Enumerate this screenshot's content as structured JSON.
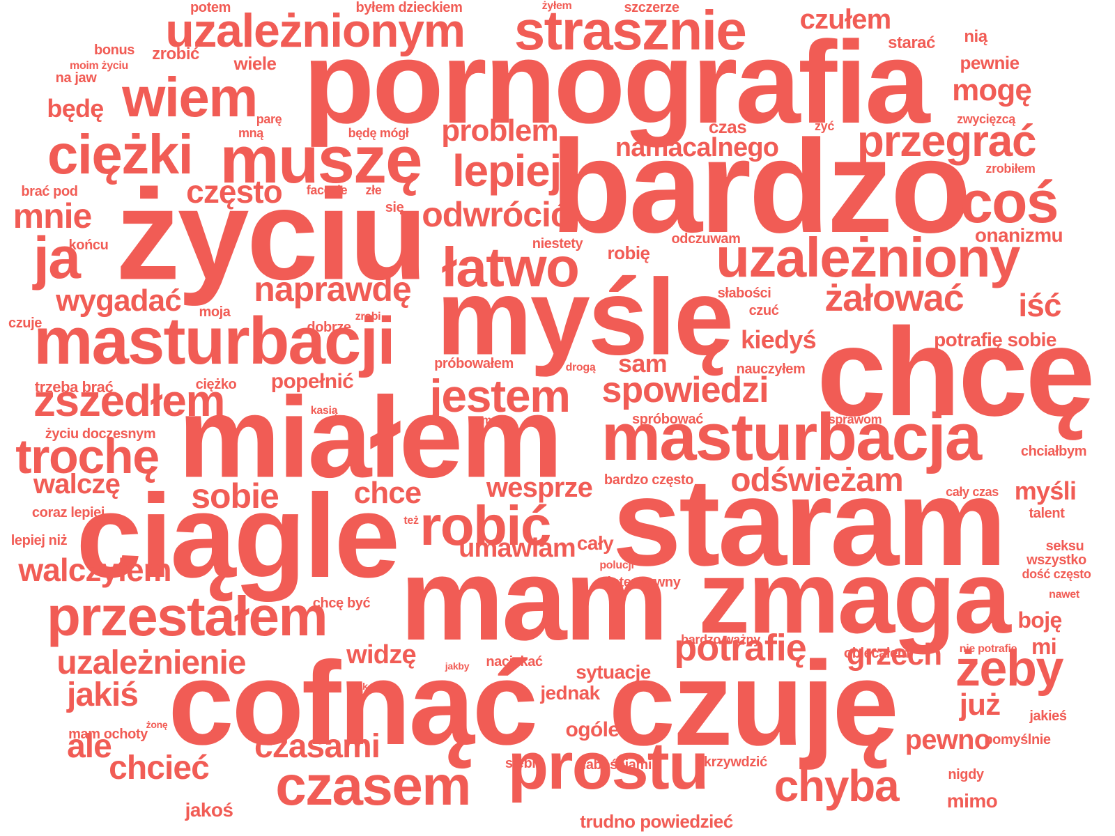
{
  "color": "#f15c55",
  "words": [
    "pornografia",
    "bardzo",
    "życiu",
    "myślę",
    "chcę",
    "miałem",
    "ciągle",
    "staram",
    "mam",
    "zmaga",
    "cofnąć",
    "czuję",
    "masturbacji",
    "masturbacja",
    "uzależnionym",
    "strasznie",
    "wiem",
    "ciężki",
    "muszę",
    "przegrać",
    "coś",
    "uzależniony",
    "łatwo",
    "lepiej",
    "problem",
    "namacalnego",
    "jestem",
    "spowiedzi",
    "zszedłem",
    "trochę",
    "robić",
    "przestałem",
    "uzależnienie",
    "prostu",
    "czasem",
    "czasami",
    "chyba",
    "potrafię",
    "grzech",
    "żeby",
    "odświeżam",
    "naprawdę",
    "żałować",
    "odwrócić",
    "często",
    "mnie",
    "ja",
    "sobie",
    "wygadać",
    "czułem",
    "mogę",
    "kiedyś",
    "iść",
    "chce",
    "walczę",
    "walczyłem",
    "jakiś",
    "ale",
    "chcieć",
    "widzę",
    "umawiam",
    "wesprze",
    "sam",
    "popełnić",
    "już",
    "pewno",
    "myśli",
    "boję",
    "mi",
    "ogóle",
    "jednak",
    "sytuacje",
    "cały",
    "onanizmu",
    "potrafię sobie",
    "bardzo często",
    "spróbować",
    "nauczyłem",
    "próbowałem",
    "odczuwam",
    "robię",
    "niestety",
    "słabości",
    "czuć",
    "dobrze",
    "zrobi",
    "moja",
    "ciężko",
    "trzeba brać",
    "życiu doczesnym",
    "kasią",
    "moim",
    "drogą",
    "sprawom",
    "chciałbym",
    "cały czas",
    "talent",
    "seksu",
    "wszystko",
    "dość często",
    "nawet",
    "nie potrafię",
    "obiecałem",
    "bardzo ważny",
    "intensywny",
    "polucji",
    "też",
    "chcę być",
    "coraz lepiej",
    "lepiej niż",
    "czuje",
    "końcu",
    "brać pod",
    "facecie",
    "złe",
    "się",
    "mną",
    "będę mógł",
    "parę",
    "będę",
    "na jaw",
    "moim życiu",
    "bonus",
    "zrobić",
    "wiele",
    "potem",
    "byłem dzieckiem",
    "żyłem",
    "szczerze",
    "starać",
    "nią",
    "pewnie",
    "zwycięzcą",
    "żyć",
    "czas",
    "zrobiłem",
    "naciskać",
    "jakby",
    "tak",
    "mam ochoty",
    "żonę",
    "jakoś",
    "siebie",
    "słabościami",
    "skrzywdzić",
    "trudno powiedzieć",
    "mimo",
    "nigdy",
    "pomyślnie",
    "jakieś"
  ]
}
